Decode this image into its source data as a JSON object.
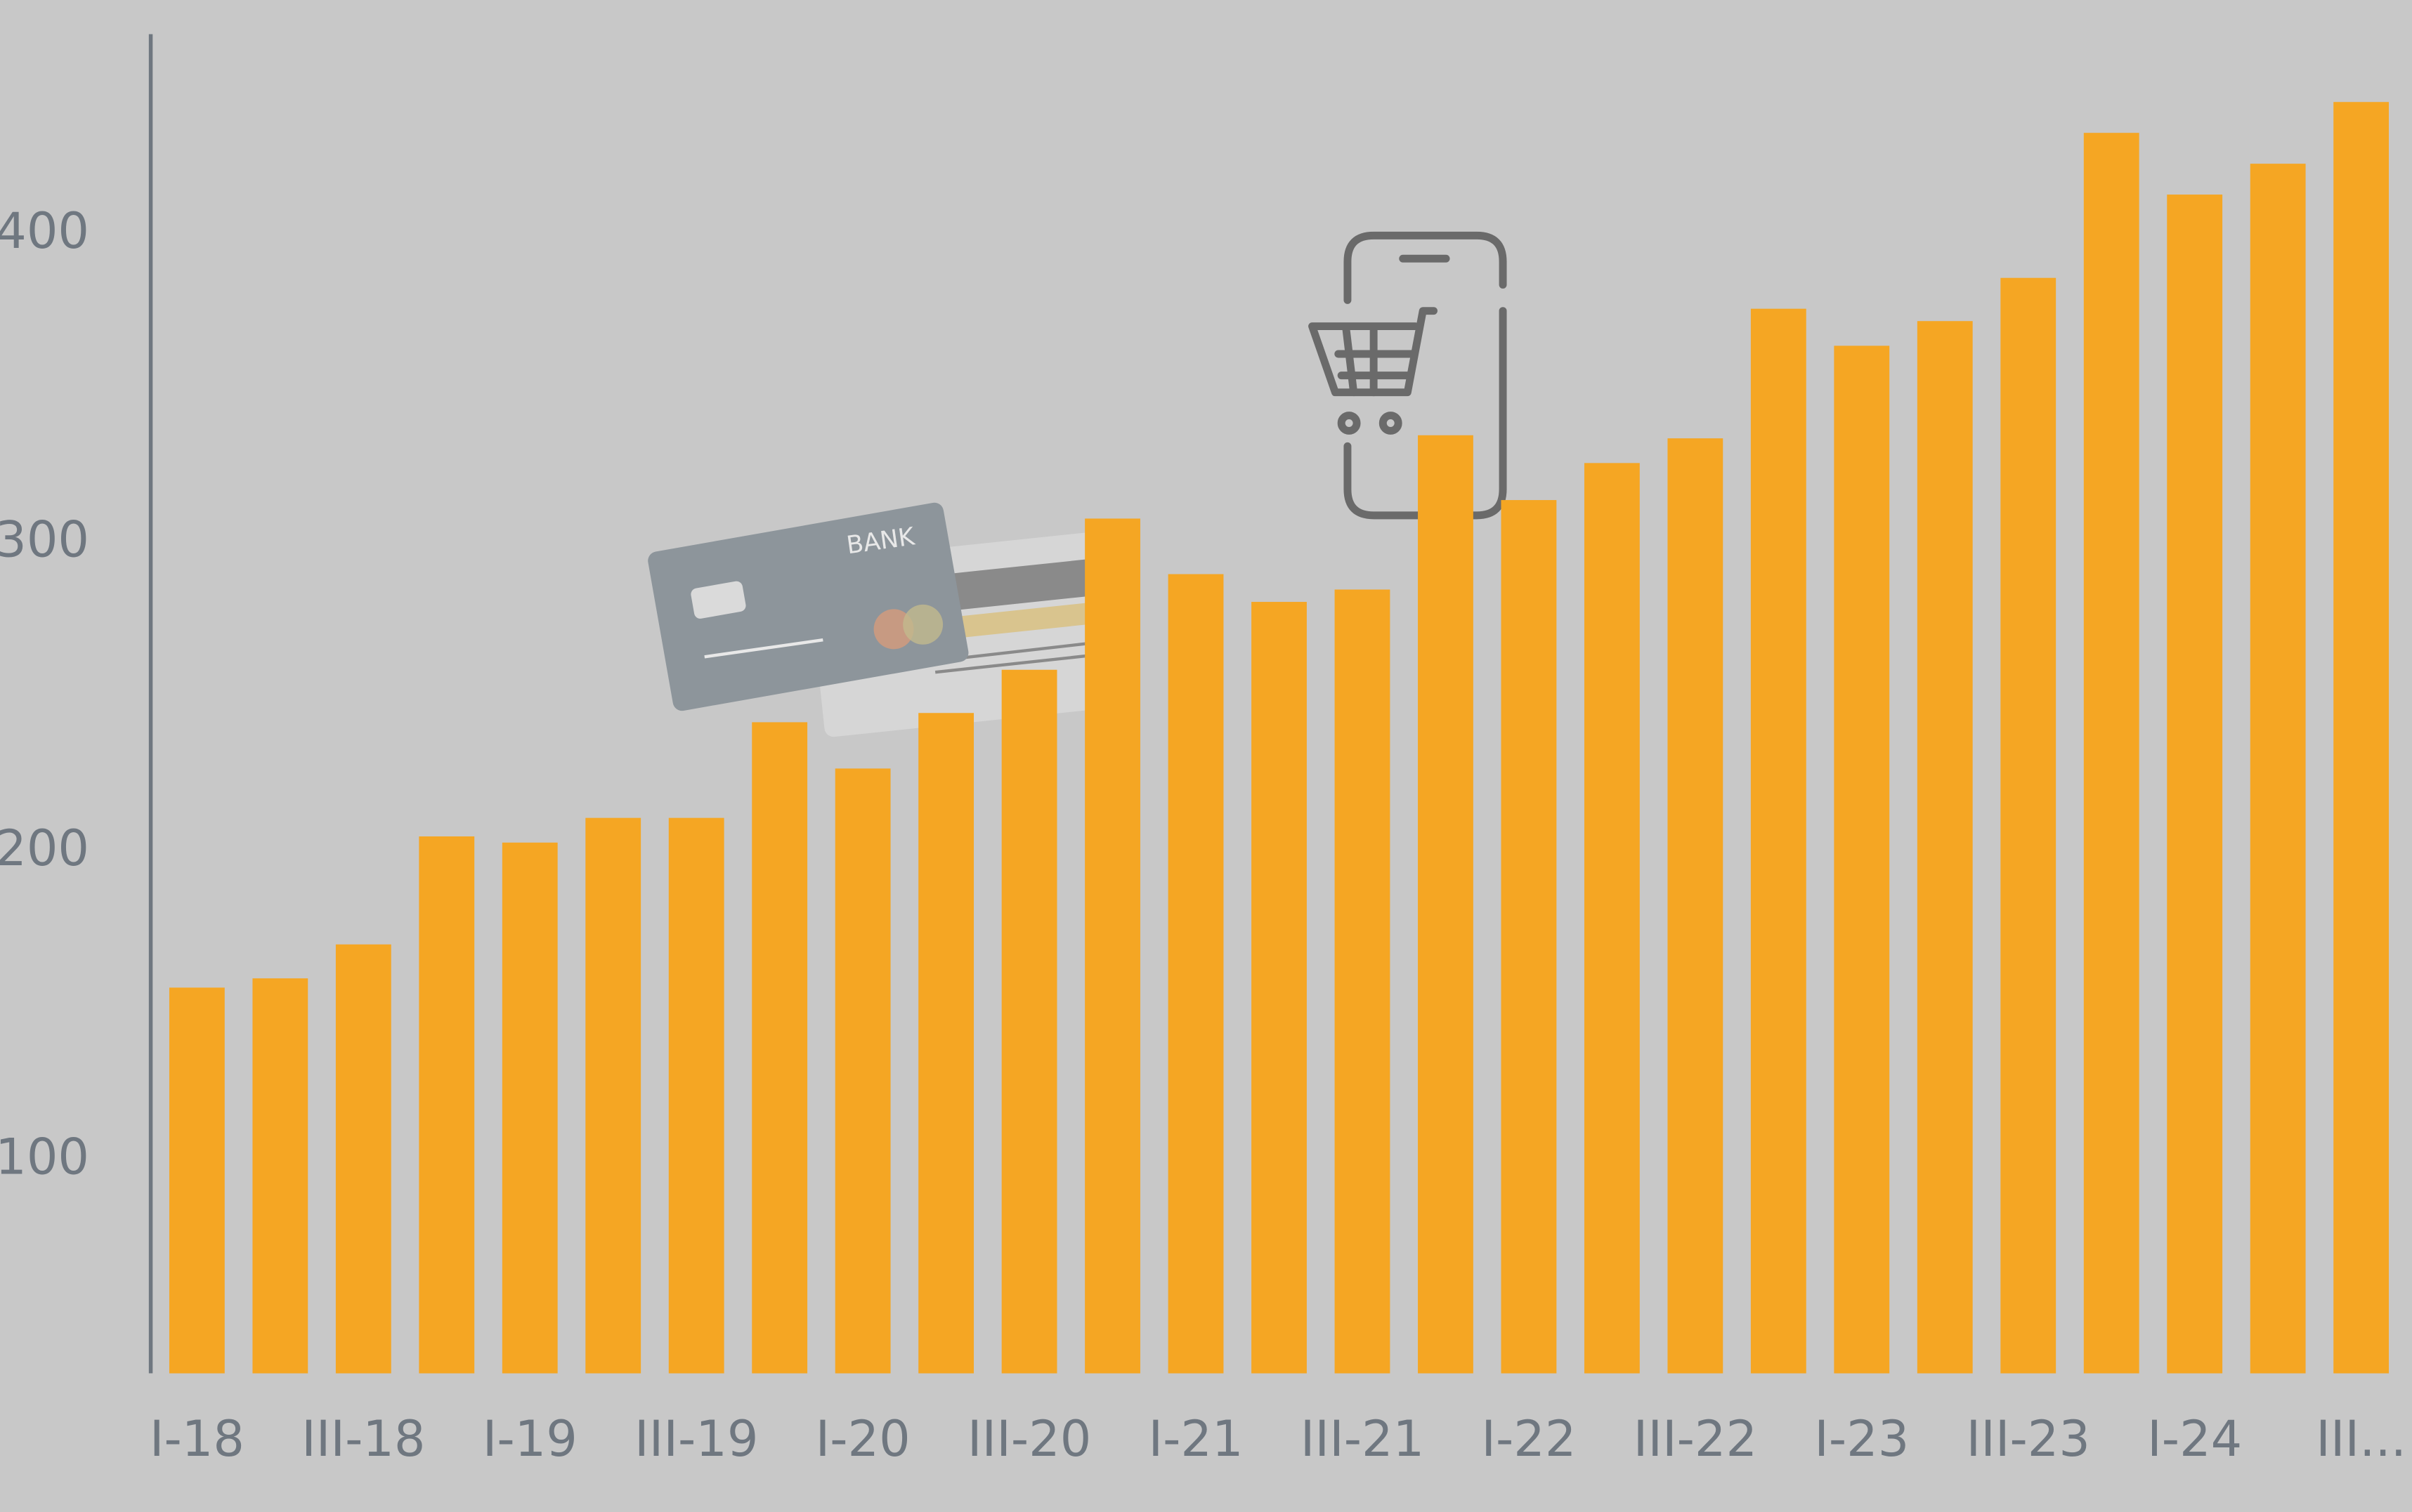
{
  "chart_data": {
    "type": "bar",
    "categories": [
      "I-18",
      null,
      "III-18",
      null,
      "I-19",
      null,
      "III-19",
      null,
      "I-20",
      null,
      "III-20",
      null,
      "I-21",
      null,
      "III-21",
      null,
      "I-22",
      null,
      "III-22",
      null,
      "I-23",
      null,
      "III-23",
      null,
      "I-24",
      null,
      "III..."
    ],
    "values": [
      156,
      159,
      170,
      205,
      203,
      211,
      211,
      242,
      227,
      245,
      259,
      308,
      290,
      281,
      285,
      335,
      314,
      326,
      334,
      376,
      364,
      372,
      386,
      433,
      413,
      423,
      443
    ],
    "color": "#f5a623",
    "ylim": [
      31,
      465
    ],
    "yticks": [
      100,
      200,
      300,
      400
    ],
    "grid": false
  }
}
